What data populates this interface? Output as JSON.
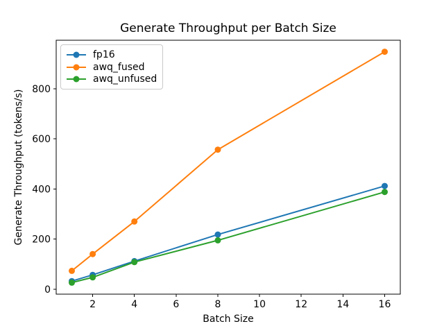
{
  "figure": {
    "background": "#ffffff",
    "text_color": "#000000",
    "axis_color": "#000000"
  },
  "chart_data": {
    "type": "line",
    "title": "Generate Throughput per Batch Size",
    "xlabel": "Batch Size",
    "ylabel": "Generate Throughput (tokens/s)",
    "x": [
      1,
      2,
      4,
      8,
      16
    ],
    "series": [
      {
        "name": "fp16",
        "color": "#1f77b4",
        "values": [
          32,
          57,
          112,
          218,
          412
        ]
      },
      {
        "name": "awq_fused",
        "color": "#ff7f0e",
        "values": [
          73,
          140,
          270,
          557,
          948
        ]
      },
      {
        "name": "awq_unfused",
        "color": "#2ca02c",
        "values": [
          26,
          47,
          108,
          195,
          388
        ]
      }
    ],
    "xticks": [
      2,
      4,
      6,
      8,
      10,
      12,
      14,
      16
    ],
    "yticks": [
      0,
      200,
      400,
      600,
      800
    ],
    "xlim": [
      0.25,
      16.75
    ],
    "ylim": [
      -20,
      994
    ],
    "grid": false,
    "legend_position": "upper-left",
    "legend_entries": [
      "fp16",
      "awq_fused",
      "awq_unfused"
    ],
    "marker": "o",
    "line_width": 2,
    "marker_radius": 4.5
  }
}
